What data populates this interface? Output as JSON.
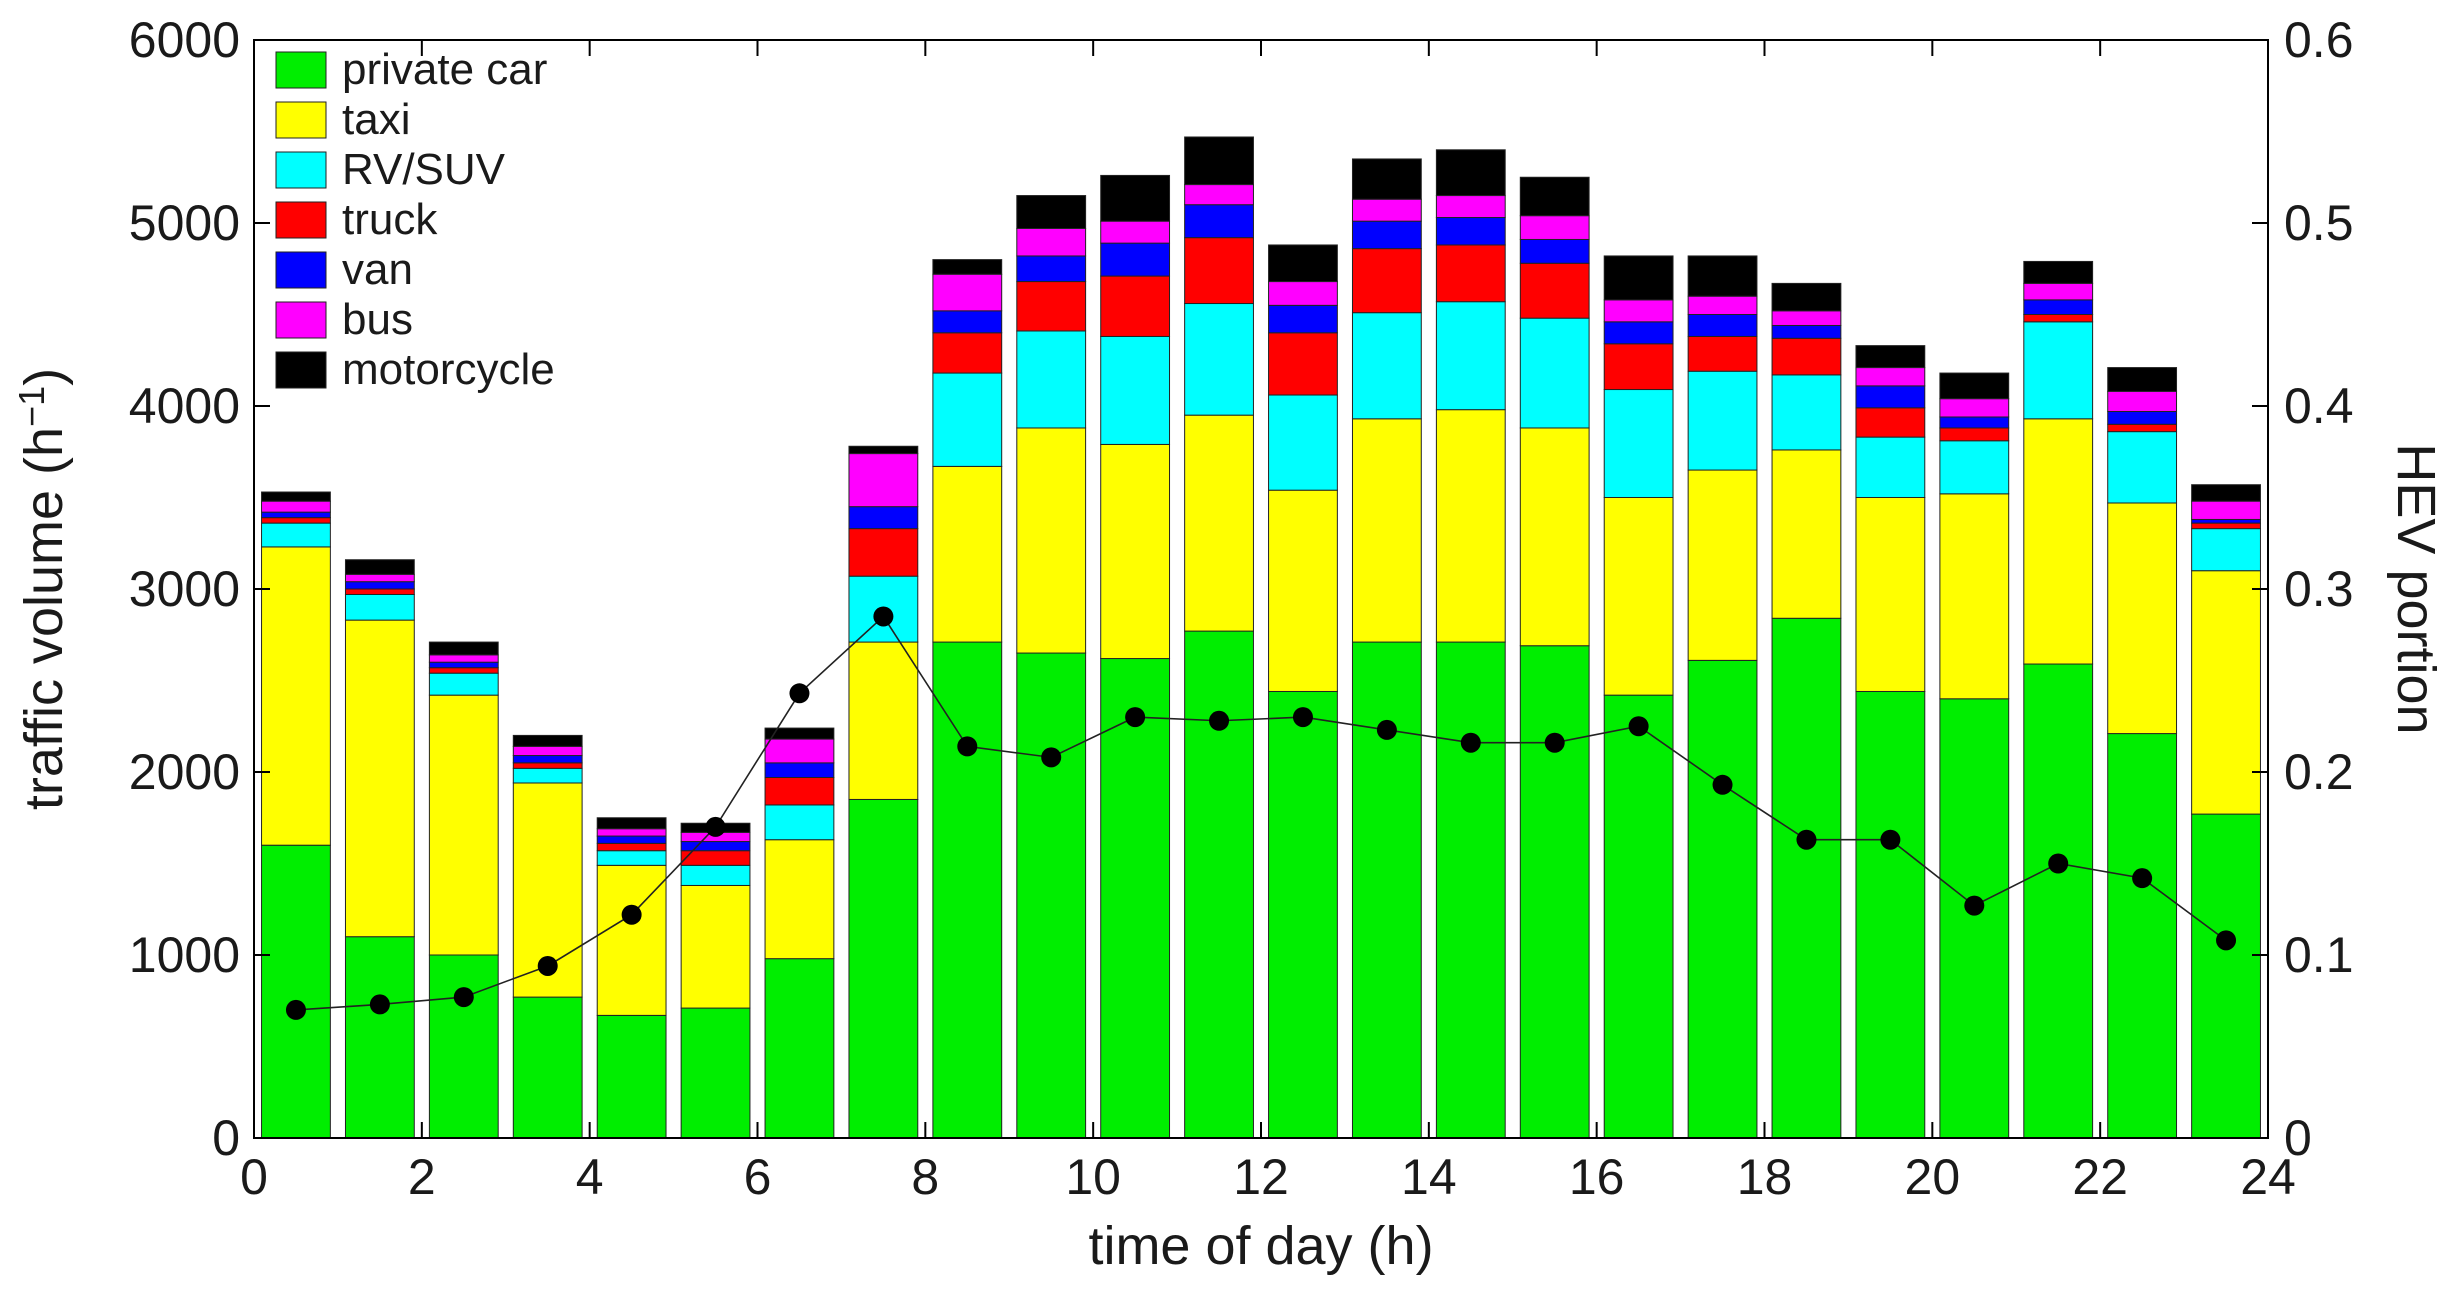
{
  "chart_data": {
    "type": "bar",
    "stacked": true,
    "x": [
      0.5,
      1.5,
      2.5,
      3.5,
      4.5,
      5.5,
      6.5,
      7.5,
      8.5,
      9.5,
      10.5,
      11.5,
      12.5,
      13.5,
      14.5,
      15.5,
      16.5,
      17.5,
      18.5,
      19.5,
      20.5,
      21.5,
      22.5,
      23.5
    ],
    "xlabel": "time of day (h)",
    "ylabel": "traffic volume (h",
    "ylabel_superscript": "−1",
    "ylabel_close": ")",
    "y2label": "HEV portion",
    "xlim": [
      0,
      24
    ],
    "ylim": [
      0,
      6000
    ],
    "y2lim": [
      0,
      0.6
    ],
    "xticks": [
      "0",
      "2",
      "4",
      "6",
      "8",
      "10",
      "12",
      "14",
      "16",
      "18",
      "20",
      "22",
      "24"
    ],
    "yticks": [
      "0",
      "1000",
      "2000",
      "3000",
      "4000",
      "5000",
      "6000"
    ],
    "y2ticks": [
      "0",
      "0.1",
      "0.2",
      "0.3",
      "0.4",
      "0.5",
      "0.6"
    ],
    "legend_position": "top-left",
    "series": [
      {
        "name": "private car",
        "color": "#00ee00",
        "values": [
          1600,
          1100,
          1000,
          770,
          670,
          710,
          980,
          1850,
          2710,
          2650,
          2620,
          2770,
          2440,
          2710,
          2710,
          2690,
          2420,
          2610,
          2840,
          2440,
          2400,
          2590,
          2210,
          1770
        ]
      },
      {
        "name": "taxi",
        "color": "#ffff00",
        "values": [
          1630,
          1730,
          1420,
          1170,
          820,
          670,
          650,
          860,
          960,
          1230,
          1170,
          1180,
          1100,
          1220,
          1270,
          1190,
          1080,
          1040,
          920,
          1060,
          1120,
          1340,
          1260,
          1330
        ]
      },
      {
        "name": "RV/SUV",
        "color": "#00ffff",
        "values": [
          130,
          140,
          120,
          80,
          80,
          110,
          190,
          360,
          510,
          530,
          590,
          610,
          520,
          580,
          590,
          600,
          590,
          540,
          410,
          330,
          290,
          530,
          390,
          230
        ]
      },
      {
        "name": "truck",
        "color": "#ff0000",
        "values": [
          30,
          30,
          30,
          30,
          40,
          80,
          150,
          260,
          220,
          270,
          330,
          360,
          340,
          350,
          310,
          300,
          250,
          190,
          200,
          160,
          70,
          40,
          40,
          30
        ]
      },
      {
        "name": "van",
        "color": "#0000ff",
        "values": [
          30,
          40,
          30,
          40,
          40,
          50,
          80,
          120,
          120,
          140,
          180,
          180,
          150,
          150,
          150,
          130,
          120,
          120,
          70,
          120,
          60,
          80,
          70,
          20
        ]
      },
      {
        "name": "bus",
        "color": "#ff00ff",
        "values": [
          60,
          40,
          40,
          50,
          40,
          50,
          130,
          290,
          200,
          150,
          120,
          110,
          130,
          120,
          120,
          130,
          120,
          100,
          80,
          100,
          100,
          90,
          110,
          100
        ]
      },
      {
        "name": "motorcycle",
        "color": "#000000",
        "values": [
          50,
          80,
          70,
          60,
          60,
          50,
          60,
          40,
          80,
          180,
          250,
          260,
          200,
          220,
          250,
          210,
          240,
          220,
          150,
          120,
          140,
          120,
          130,
          90
        ]
      }
    ],
    "line_series": {
      "name": "HEV portion",
      "axis": "right",
      "color": "#000000",
      "values": [
        0.07,
        0.073,
        0.077,
        0.094,
        0.122,
        0.17,
        0.243,
        0.285,
        0.214,
        0.208,
        0.23,
        0.228,
        0.23,
        0.223,
        0.216,
        0.216,
        0.225,
        0.193,
        0.163,
        0.163,
        0.127,
        0.15,
        0.142,
        0.108
      ]
    }
  }
}
